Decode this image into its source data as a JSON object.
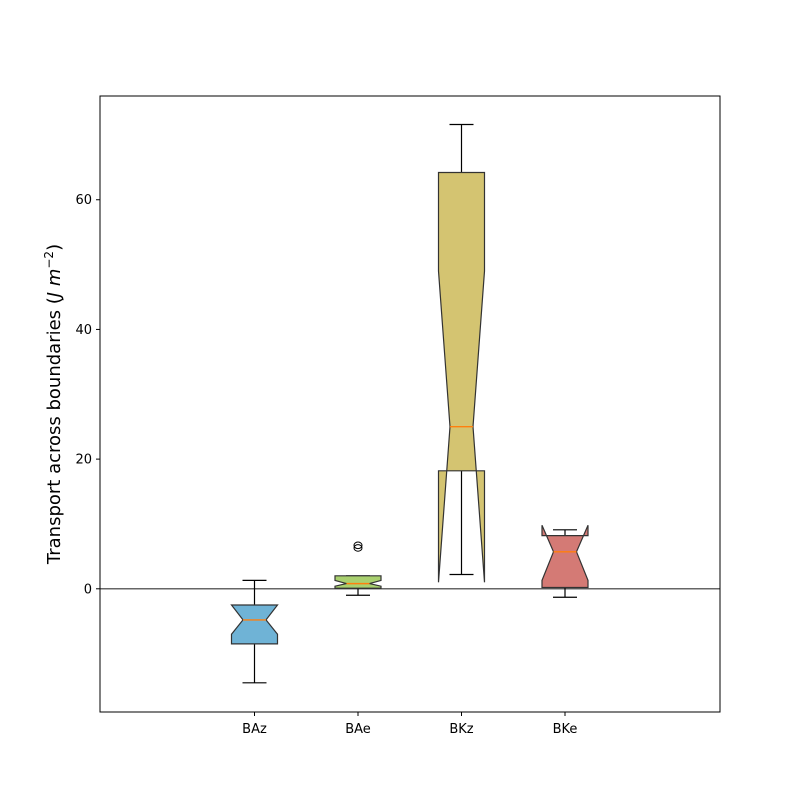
{
  "chart_data": {
    "type": "boxplot",
    "notched": true,
    "title": "",
    "xlabel": "",
    "ylabel": "Transport across boundaries (J m⁻²)",
    "ylabel_parts": {
      "pre": "Transport across boundaries (",
      "math": "J m",
      "sup": "−2",
      "post": ")"
    },
    "ylim": [
      -19,
      76
    ],
    "yticks": [
      0,
      20,
      40,
      60
    ],
    "zero_line": 0,
    "categories": [
      "BAz",
      "BAe",
      "BKz",
      "BKe"
    ],
    "series": [
      {
        "category": "BAz",
        "color": "#6fb3d6",
        "whisker_low": -14.5,
        "q1": -8.5,
        "notch_low": -7.0,
        "median": -4.8,
        "notch_high": -2.5,
        "q3": -2.5,
        "whisker_high": 1.3,
        "outliers": []
      },
      {
        "category": "BAe",
        "color": "#a9d06f",
        "whisker_low": -1.0,
        "q1": 0.1,
        "notch_low": 0.4,
        "median": 0.8,
        "notch_high": 1.3,
        "q3": 2.0,
        "whisker_high": 2.0,
        "outliers": [
          6.3,
          6.7
        ]
      },
      {
        "category": "BKz",
        "color": "#d4c471",
        "whisker_low": 2.2,
        "q1": 18.2,
        "notch_low": 1.0,
        "median": 25.0,
        "notch_high": 49.0,
        "q3": 64.2,
        "whisker_high": 71.6,
        "outliers": []
      },
      {
        "category": "BKe",
        "color": "#d47a75",
        "whisker_low": -1.3,
        "q1": 0.2,
        "notch_low": 1.3,
        "median": 5.7,
        "notch_high": 9.8,
        "q3": 8.2,
        "whisker_high": 9.1,
        "outliers": []
      }
    ]
  }
}
